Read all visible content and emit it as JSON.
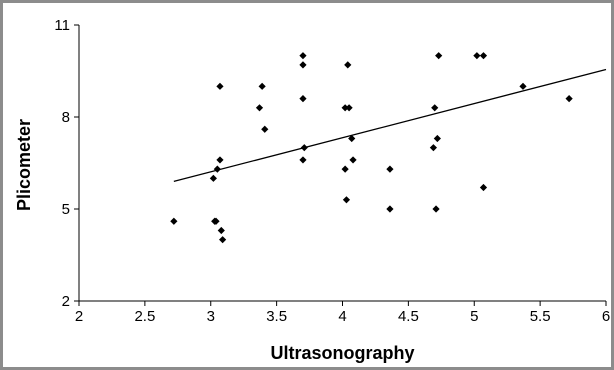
{
  "chart_data": {
    "type": "scatter",
    "title": "",
    "xlabel": "Ultrasonography",
    "ylabel": "Plicometer",
    "xlim": [
      2,
      6
    ],
    "ylim": [
      2,
      11
    ],
    "x_ticks": [
      2,
      2.5,
      3,
      3.5,
      4,
      4.5,
      5,
      5.5,
      6
    ],
    "x_tick_labels": [
      "2",
      "2.5",
      "3",
      "3.5",
      "4",
      "4.5",
      "5",
      "5.5",
      "6"
    ],
    "y_ticks": [
      2,
      5,
      8,
      11
    ],
    "y_tick_labels": [
      "2",
      "5",
      "8",
      "11"
    ],
    "grid": false,
    "legend": "none",
    "marker": "diamond",
    "series": [
      {
        "points": [
          [
            2.72,
            4.6
          ],
          [
            3.02,
            6.0
          ],
          [
            3.03,
            4.6
          ],
          [
            3.04,
            4.6
          ],
          [
            3.05,
            6.3
          ],
          [
            3.07,
            9.0
          ],
          [
            3.07,
            6.6
          ],
          [
            3.08,
            4.3
          ],
          [
            3.09,
            4.0
          ],
          [
            3.37,
            8.3
          ],
          [
            3.39,
            9.0
          ],
          [
            3.41,
            7.6
          ],
          [
            3.7,
            6.6
          ],
          [
            3.7,
            9.7
          ],
          [
            3.7,
            10.0
          ],
          [
            3.7,
            8.6
          ],
          [
            3.71,
            7.0
          ],
          [
            4.02,
            8.3
          ],
          [
            4.02,
            6.3
          ],
          [
            4.03,
            5.3
          ],
          [
            4.04,
            9.7
          ],
          [
            4.05,
            8.3
          ],
          [
            4.07,
            7.3
          ],
          [
            4.08,
            6.6
          ],
          [
            4.36,
            6.3
          ],
          [
            4.36,
            5.0
          ],
          [
            4.69,
            7.0
          ],
          [
            4.7,
            8.3
          ],
          [
            4.71,
            5.0
          ],
          [
            4.72,
            7.3
          ],
          [
            4.73,
            10.0
          ],
          [
            5.02,
            10.0
          ],
          [
            5.07,
            10.0
          ],
          [
            5.07,
            5.7
          ],
          [
            5.37,
            9.0
          ],
          [
            5.72,
            8.6
          ]
        ]
      }
    ],
    "trendline": {
      "x": [
        2.72,
        6.0
      ],
      "y": [
        5.9,
        9.55
      ]
    }
  }
}
